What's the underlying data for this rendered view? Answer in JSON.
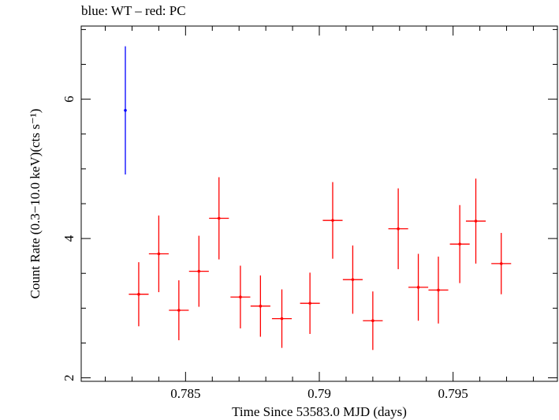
{
  "chart_data": {
    "type": "scatter",
    "title": "blue: WT – red: PC",
    "xlabel": "Time Since 53583.0 MJD (days)",
    "ylabel": "Count Rate (0.3−10.0 keV)(cts s⁻¹)",
    "xlim": [
      0.7811,
      0.7989
    ],
    "ylim": [
      1.95,
      7.05
    ],
    "x_ticks": [
      {
        "value": 0.785,
        "label": "0.785"
      },
      {
        "value": 0.79,
        "label": "0.79"
      },
      {
        "value": 0.795,
        "label": "0.795"
      }
    ],
    "x_minor_step": 0.001,
    "y_ticks": [
      {
        "value": 2,
        "label": "2"
      },
      {
        "value": 4,
        "label": "4"
      },
      {
        "value": 6,
        "label": "6"
      }
    ],
    "y_minor_step": 0.5,
    "grid": false,
    "series": [
      {
        "name": "WT",
        "color": "#0000ff",
        "points": [
          {
            "x": 0.78275,
            "xerr": 4e-05,
            "y": 5.84,
            "yerr": 0.92
          }
        ]
      },
      {
        "name": "PC",
        "color": "#ff0000",
        "points": [
          {
            "x": 0.78325,
            "xerr": 0.00037,
            "y": 3.2,
            "yerr": 0.46
          },
          {
            "x": 0.784,
            "xerr": 0.00037,
            "y": 3.78,
            "yerr": 0.55
          },
          {
            "x": 0.78475,
            "xerr": 0.00037,
            "y": 2.97,
            "yerr": 0.43
          },
          {
            "x": 0.7855,
            "xerr": 0.00037,
            "y": 3.53,
            "yerr": 0.51
          },
          {
            "x": 0.78625,
            "xerr": 0.00037,
            "y": 4.29,
            "yerr": 0.59
          },
          {
            "x": 0.78705,
            "xerr": 0.00037,
            "y": 3.16,
            "yerr": 0.45
          },
          {
            "x": 0.7878,
            "xerr": 0.00037,
            "y": 3.03,
            "yerr": 0.44
          },
          {
            "x": 0.7886,
            "xerr": 0.00037,
            "y": 2.85,
            "yerr": 0.42
          },
          {
            "x": 0.78965,
            "xerr": 0.00037,
            "y": 3.07,
            "yerr": 0.44
          },
          {
            "x": 0.7905,
            "xerr": 0.00037,
            "y": 4.26,
            "yerr": 0.55
          },
          {
            "x": 0.79125,
            "xerr": 0.00037,
            "y": 3.41,
            "yerr": 0.49
          },
          {
            "x": 0.792,
            "xerr": 0.00037,
            "y": 2.82,
            "yerr": 0.42
          },
          {
            "x": 0.79295,
            "xerr": 0.00037,
            "y": 4.14,
            "yerr": 0.58
          },
          {
            "x": 0.7937,
            "xerr": 0.00037,
            "y": 3.3,
            "yerr": 0.48
          },
          {
            "x": 0.79445,
            "xerr": 0.00037,
            "y": 3.26,
            "yerr": 0.48
          },
          {
            "x": 0.79525,
            "xerr": 0.00037,
            "y": 3.92,
            "yerr": 0.56
          },
          {
            "x": 0.79585,
            "xerr": 0.00037,
            "y": 4.25,
            "yerr": 0.61
          },
          {
            "x": 0.7968,
            "xerr": 0.00037,
            "y": 3.64,
            "yerr": 0.44
          }
        ]
      }
    ]
  }
}
